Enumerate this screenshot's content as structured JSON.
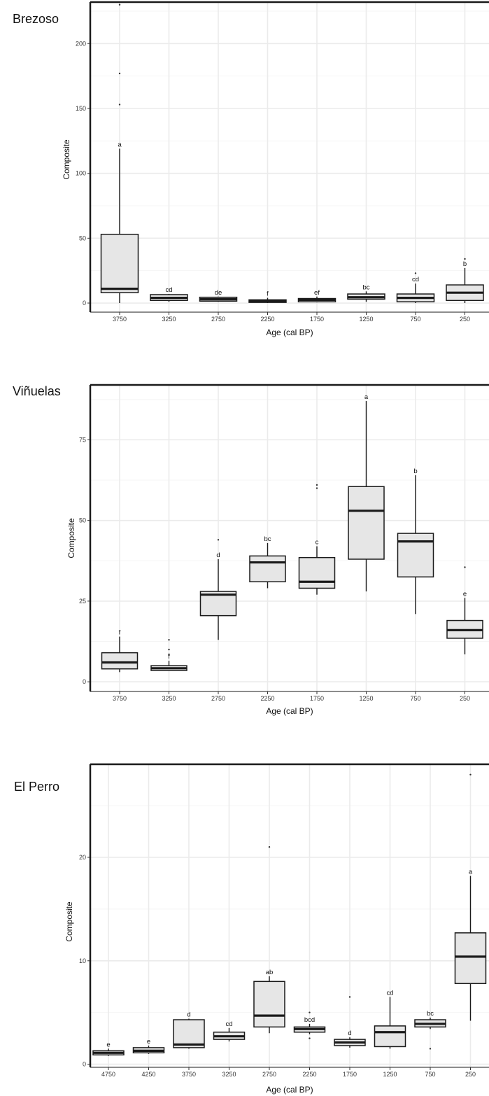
{
  "chart_data": [
    {
      "type": "boxplot",
      "title": "Brezoso",
      "xlabel": "Age (cal BP)",
      "ylabel": "Composite",
      "ylim": [
        -7,
        232
      ],
      "yticks": [
        0,
        50,
        100,
        150,
        200
      ],
      "categories": [
        "3750",
        "3250",
        "2750",
        "2250",
        "1750",
        "1250",
        "750",
        "250"
      ],
      "boxes": [
        {
          "q1": 8,
          "median": 11,
          "q3": 53,
          "lower": 0,
          "upper": 119,
          "outliers": [
            153,
            177,
            230
          ],
          "letter": "a"
        },
        {
          "q1": 2,
          "median": 4,
          "q3": 6.5,
          "lower": 1,
          "upper": 7,
          "outliers": [],
          "letter": "cd"
        },
        {
          "q1": 1.5,
          "median": 3,
          "q3": 4.5,
          "lower": 1,
          "upper": 5,
          "outliers": [],
          "letter": "de"
        },
        {
          "q1": 0.5,
          "median": 1.5,
          "q3": 2.5,
          "lower": 0,
          "upper": 4,
          "outliers": [],
          "letter": "f"
        },
        {
          "q1": 1,
          "median": 2.5,
          "q3": 3.5,
          "lower": 0.5,
          "upper": 5,
          "outliers": [],
          "letter": "ef"
        },
        {
          "q1": 3,
          "median": 4.5,
          "q3": 7,
          "lower": 1,
          "upper": 9,
          "outliers": [],
          "letter": "bc"
        },
        {
          "q1": 1,
          "median": 4,
          "q3": 7,
          "lower": 0,
          "upper": 15,
          "outliers": [
            23
          ],
          "letter": "cd"
        },
        {
          "q1": 2,
          "median": 8,
          "q3": 14,
          "lower": 0,
          "upper": 27,
          "outliers": [
            34
          ],
          "letter": "b"
        }
      ]
    },
    {
      "type": "boxplot",
      "title": "Viñuelas",
      "xlabel": "Age (cal BP)",
      "ylabel": "Composite",
      "ylim": [
        -3,
        92
      ],
      "yticks": [
        0,
        25,
        50,
        75
      ],
      "categories": [
        "3750",
        "3250",
        "2750",
        "2250",
        "1750",
        "1250",
        "750",
        "250"
      ],
      "boxes": [
        {
          "q1": 4,
          "median": 6,
          "q3": 9,
          "lower": 3,
          "upper": 14,
          "outliers": [],
          "letter": "f"
        },
        {
          "q1": 3.5,
          "median": 4.2,
          "q3": 5,
          "lower": 3.5,
          "upper": 6.5,
          "outliers": [
            8.5,
            10,
            13
          ],
          "letter": "f"
        },
        {
          "q1": 20.5,
          "median": 27,
          "q3": 28,
          "lower": 13,
          "upper": 38,
          "outliers": [
            44
          ],
          "letter": "d"
        },
        {
          "q1": 31,
          "median": 37,
          "q3": 39,
          "lower": 29,
          "upper": 43,
          "outliers": [],
          "letter": "bc"
        },
        {
          "q1": 29,
          "median": 31,
          "q3": 38.5,
          "lower": 27,
          "upper": 42,
          "outliers": [
            60,
            61
          ],
          "letter": "c"
        },
        {
          "q1": 38,
          "median": 53,
          "q3": 60.5,
          "lower": 28,
          "upper": 87,
          "outliers": [],
          "letter": "a"
        },
        {
          "q1": 32.5,
          "median": 43.5,
          "q3": 46,
          "lower": 21,
          "upper": 64,
          "outliers": [],
          "letter": "b"
        },
        {
          "q1": 13.5,
          "median": 16,
          "q3": 19,
          "lower": 8.5,
          "upper": 26,
          "outliers": [
            35.5
          ],
          "letter": "e"
        }
      ]
    },
    {
      "type": "boxplot",
      "title": "El Perro",
      "xlabel": "Age (cal BP)",
      "ylabel": "Composite",
      "ylim": [
        -0.3,
        29
      ],
      "yticks": [
        0,
        10,
        20
      ],
      "categories": [
        "4750",
        "4250",
        "3750",
        "3250",
        "2750",
        "2250",
        "1750",
        "1250",
        "750",
        "250"
      ],
      "boxes": [
        {
          "q1": 0.9,
          "median": 1.1,
          "q3": 1.3,
          "lower": 0.8,
          "upper": 1.5,
          "outliers": [],
          "letter": "e"
        },
        {
          "q1": 1.1,
          "median": 1.3,
          "q3": 1.6,
          "lower": 1,
          "upper": 1.8,
          "outliers": [],
          "letter": "e"
        },
        {
          "q1": 1.6,
          "median": 1.9,
          "q3": 4.3,
          "lower": 1.5,
          "upper": 4.4,
          "outliers": [],
          "letter": "d"
        },
        {
          "q1": 2.4,
          "median": 2.7,
          "q3": 3.1,
          "lower": 2.2,
          "upper": 3.5,
          "outliers": [],
          "letter": "cd"
        },
        {
          "q1": 3.6,
          "median": 4.7,
          "q3": 8,
          "lower": 3,
          "upper": 8.5,
          "outliers": [
            21
          ],
          "letter": "ab"
        },
        {
          "q1": 3.1,
          "median": 3.4,
          "q3": 3.6,
          "lower": 2.9,
          "upper": 3.9,
          "outliers": [
            5,
            2.5
          ],
          "letter": "bcd"
        },
        {
          "q1": 1.8,
          "median": 2.1,
          "q3": 2.4,
          "lower": 1.6,
          "upper": 2.6,
          "outliers": [
            6.5
          ],
          "letter": "d"
        },
        {
          "q1": 1.7,
          "median": 3.1,
          "q3": 3.7,
          "lower": 1.5,
          "upper": 6.5,
          "outliers": [],
          "letter": "cd"
        },
        {
          "q1": 3.6,
          "median": 3.9,
          "q3": 4.3,
          "lower": 3.4,
          "upper": 4.5,
          "outliers": [
            1.5
          ],
          "letter": "bc"
        },
        {
          "q1": 7.8,
          "median": 10.4,
          "q3": 12.7,
          "lower": 4.2,
          "upper": 18.2,
          "outliers": [
            28
          ],
          "letter": "a"
        }
      ]
    }
  ],
  "colors": {
    "box_fill": "#e6e6e6",
    "outline": "#1a1a1a",
    "grid": "#ebebeb",
    "grid_minor": "#f5f5f5"
  }
}
